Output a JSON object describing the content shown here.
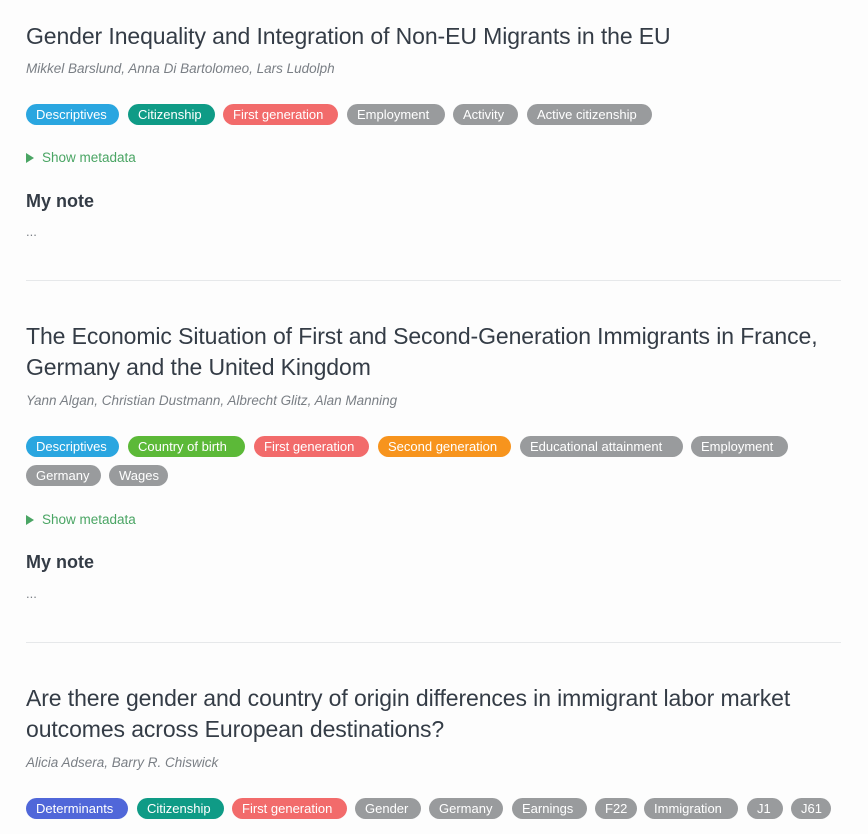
{
  "colors": {
    "blue": "#2aa6e0",
    "teal": "#0f9b86",
    "red": "#f26b6b",
    "gray": "#999b9d",
    "green": "#5cb938",
    "orange": "#f7941d",
    "indigo": "#5067d9",
    "link": "#4aa564"
  },
  "icons": {
    "toggle": "triangle-right-icon"
  },
  "entries": [
    {
      "title": "Gender Inequality and Integration of Non-EU Migrants in the EU",
      "authors": "Mikkel Barslund, Anna Di Bartolomeo, Lars Ludolph",
      "tags": [
        {
          "label": "Descriptives",
          "color": "blue"
        },
        {
          "label": "Citizenship",
          "color": "teal"
        },
        {
          "label": "First generation",
          "color": "red"
        },
        {
          "label": "Employment",
          "color": "gray"
        },
        {
          "label": "Activity",
          "color": "gray"
        },
        {
          "label": "Active citizenship",
          "color": "gray"
        }
      ],
      "show_metadata": "Show metadata",
      "note_heading": "My note",
      "note_text": "..."
    },
    {
      "title": "The Economic Situation of First and Second-Generation Immigrants in France, Germany and the United Kingdom",
      "authors": "Yann Algan, Christian Dustmann, Albrecht Glitz, Alan Manning",
      "tags": [
        {
          "label": "Descriptives",
          "color": "blue"
        },
        {
          "label": "Country of birth",
          "color": "green"
        },
        {
          "label": "First generation",
          "color": "red"
        },
        {
          "label": "Second generation",
          "color": "orange"
        },
        {
          "label": "Educational attainment",
          "color": "gray"
        },
        {
          "label": "Employment",
          "color": "gray"
        },
        {
          "label": "Germany",
          "color": "gray"
        },
        {
          "label": "Wages",
          "color": "gray"
        }
      ],
      "show_metadata": "Show metadata",
      "note_heading": "My note",
      "note_text": "..."
    },
    {
      "title": "Are there gender and country of origin differences in immigrant labor market outcomes across European destinations?",
      "authors": "Alicia Adsera, Barry R. Chiswick",
      "tags": [
        {
          "label": "Determinants",
          "color": "indigo"
        },
        {
          "label": "Citizenship",
          "color": "teal"
        },
        {
          "label": "First generation",
          "color": "red"
        },
        {
          "label": "Gender",
          "color": "gray"
        },
        {
          "label": "Germany",
          "color": "gray"
        },
        {
          "label": "Earnings",
          "color": "gray"
        },
        {
          "label": "F22",
          "color": "gray"
        },
        {
          "label": "Immigration",
          "color": "gray"
        },
        {
          "label": "J1",
          "color": "gray"
        },
        {
          "label": "J61",
          "color": "gray"
        }
      ]
    }
  ]
}
